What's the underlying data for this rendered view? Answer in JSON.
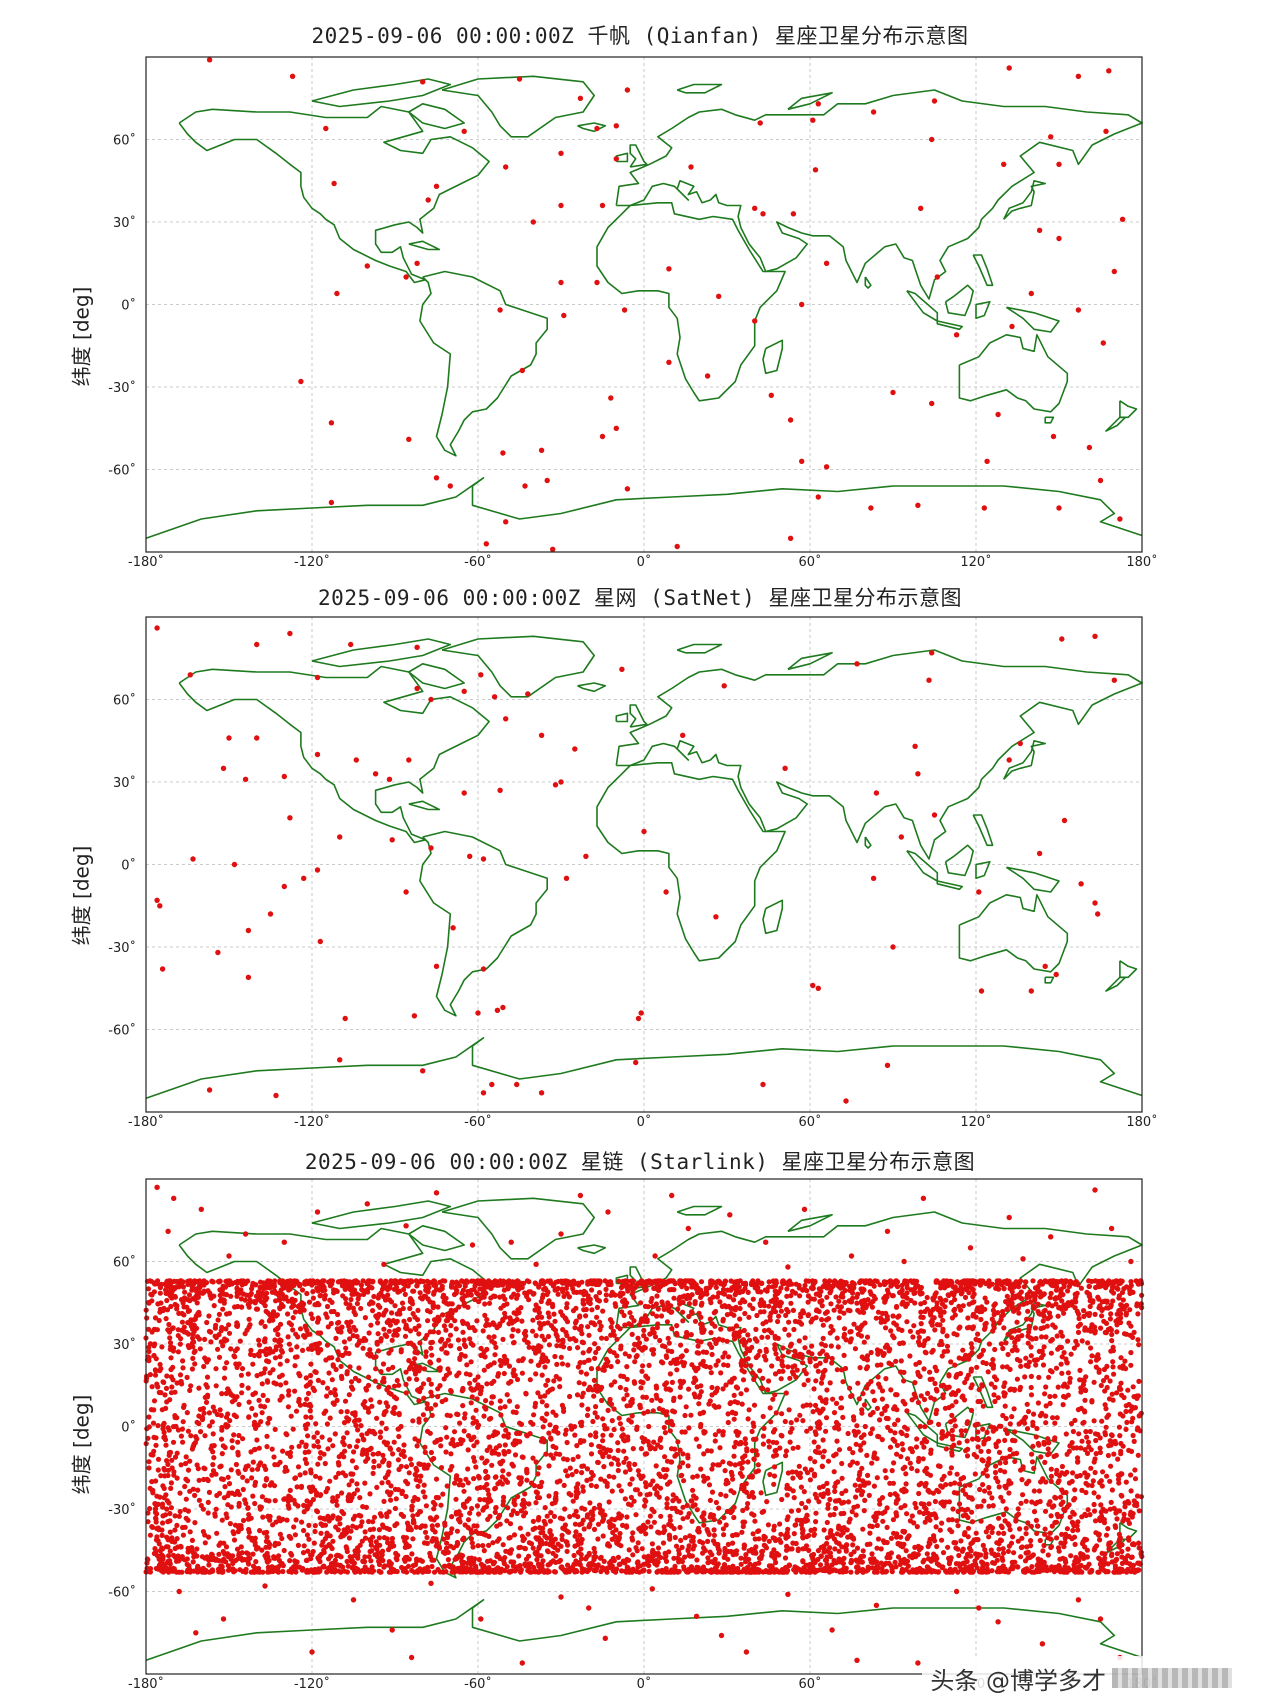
{
  "watermark": {
    "text": "头条 @博学多才"
  },
  "colors": {
    "coast": "#1e7a1e",
    "sat": "#e01010",
    "grid": "#bbbbbb",
    "frame": "#222222"
  },
  "axes": {
    "xticks": [
      -180,
      -120,
      -60,
      0,
      60,
      120,
      180
    ],
    "xtick_labels": [
      "-180˚",
      "-120˚",
      "-60˚",
      "0˚",
      "60˚",
      "120˚",
      "180˚"
    ],
    "yticks": [
      60,
      30,
      0,
      -30,
      -60
    ],
    "ytick_labels": [
      "60˚",
      "30˚",
      "0˚",
      "-30˚",
      "-60˚"
    ],
    "xlim": [
      -180,
      180
    ],
    "ylim": [
      -90,
      90
    ],
    "ylabel": "纬度 [deg]"
  },
  "chart_data": [
    {
      "type": "scatter",
      "title": "2025-09-06 00:00:00Z 千帆 (Qianfan) 星座卫星分布示意图",
      "ylabel": "纬度 [deg]",
      "xlim": [
        -180,
        180
      ],
      "ylim": [
        -90,
        90
      ],
      "grid": true,
      "series": [
        {
          "values": [
            [
              -157,
              89
            ],
            [
              -127,
              83
            ],
            [
              -80,
              81
            ],
            [
              -45,
              82
            ],
            [
              -23,
              75
            ],
            [
              -6,
              78
            ],
            [
              63,
              73
            ],
            [
              83,
              70
            ],
            [
              157,
              83
            ],
            [
              168,
              85
            ],
            [
              132,
              86
            ],
            [
              -115,
              64
            ],
            [
              -65,
              63
            ],
            [
              -17,
              64
            ],
            [
              -10,
              65
            ],
            [
              42,
              66
            ],
            [
              61,
              67
            ],
            [
              104,
              60
            ],
            [
              105,
              74
            ],
            [
              147,
              61
            ],
            [
              167,
              63
            ],
            [
              -112,
              44
            ],
            [
              -75,
              43
            ],
            [
              -50,
              50
            ],
            [
              -30,
              55
            ],
            [
              -10,
              53
            ],
            [
              17,
              50
            ],
            [
              62,
              49
            ],
            [
              130,
              51
            ],
            [
              150,
              51
            ],
            [
              -78,
              38
            ],
            [
              -40,
              30
            ],
            [
              -30,
              36
            ],
            [
              -15,
              36
            ],
            [
              40,
              35
            ],
            [
              43,
              33
            ],
            [
              54,
              33
            ],
            [
              100,
              35
            ],
            [
              143,
              27
            ],
            [
              150,
              24
            ],
            [
              173,
              31
            ],
            [
              -100,
              14
            ],
            [
              -82,
              15
            ],
            [
              -86,
              10
            ],
            [
              -30,
              8
            ],
            [
              -17,
              8
            ],
            [
              9,
              13
            ],
            [
              27,
              3
            ],
            [
              66,
              15
            ],
            [
              106,
              10
            ],
            [
              140,
              4
            ],
            [
              170,
              12
            ],
            [
              -111,
              4
            ],
            [
              -52,
              -2
            ],
            [
              -29,
              -4
            ],
            [
              -7,
              -2
            ],
            [
              9,
              -21
            ],
            [
              40,
              -6
            ],
            [
              57,
              0
            ],
            [
              113,
              -11
            ],
            [
              133,
              -8
            ],
            [
              157,
              -2
            ],
            [
              166,
              -14
            ],
            [
              -124,
              -28
            ],
            [
              -44,
              -24
            ],
            [
              -12,
              -34
            ],
            [
              -10,
              -45
            ],
            [
              23,
              -26
            ],
            [
              46,
              -33
            ],
            [
              53,
              -42
            ],
            [
              90,
              -32
            ],
            [
              104,
              -36
            ],
            [
              128,
              -40
            ],
            [
              148,
              -48
            ],
            [
              -113,
              -43
            ],
            [
              -85,
              -49
            ],
            [
              -51,
              -54
            ],
            [
              -37,
              -53
            ],
            [
              -15,
              -48
            ],
            [
              57,
              -57
            ],
            [
              66,
              -59
            ],
            [
              124,
              -57
            ],
            [
              161,
              -52
            ],
            [
              -113,
              -72
            ],
            [
              -75,
              -63
            ],
            [
              -70,
              -66
            ],
            [
              -43,
              -66
            ],
            [
              -35,
              -64
            ],
            [
              -6,
              -67
            ],
            [
              63,
              -70
            ],
            [
              82,
              -74
            ],
            [
              99,
              -73
            ],
            [
              123,
              -74
            ],
            [
              150,
              -74
            ],
            [
              165,
              -64
            ],
            [
              172,
              -78
            ],
            [
              -50,
              -79
            ],
            [
              -57,
              -87
            ],
            [
              -33,
              -89
            ],
            [
              12,
              -88
            ],
            [
              53,
              -85
            ]
          ]
        }
      ]
    },
    {
      "type": "scatter",
      "title": "2025-09-06 00:00:00Z 星网 (SatNet) 星座卫星分布示意图",
      "ylabel": "纬度 [deg]",
      "xlim": [
        -180,
        180
      ],
      "ylim": [
        -90,
        90
      ],
      "grid": true,
      "series": [
        {
          "values": [
            [
              -176,
              86
            ],
            [
              -140,
              80
            ],
            [
              -128,
              84
            ],
            [
              -106,
              80
            ],
            [
              -82,
              79
            ],
            [
              -59,
              69
            ],
            [
              -8,
              71
            ],
            [
              77,
              73
            ],
            [
              151,
              82
            ],
            [
              163,
              83
            ],
            [
              -164,
              69
            ],
            [
              -118,
              68
            ],
            [
              -82,
              64
            ],
            [
              -77,
              60
            ],
            [
              -65,
              63
            ],
            [
              -54,
              61
            ],
            [
              -42,
              62
            ],
            [
              29,
              65
            ],
            [
              103,
              67
            ],
            [
              104,
              77
            ],
            [
              170,
              67
            ],
            [
              -150,
              46
            ],
            [
              -140,
              46
            ],
            [
              -118,
              40
            ],
            [
              -97,
              33
            ],
            [
              -85,
              38
            ],
            [
              -50,
              53
            ],
            [
              -37,
              47
            ],
            [
              -25,
              42
            ],
            [
              98,
              43
            ],
            [
              136,
              44
            ],
            [
              132,
              38
            ],
            [
              -152,
              35
            ],
            [
              -130,
              32
            ],
            [
              -104,
              38
            ],
            [
              -92,
              31
            ],
            [
              -65,
              26
            ],
            [
              -52,
              27
            ],
            [
              -32,
              29
            ],
            [
              -30,
              30
            ],
            [
              14,
              47
            ],
            [
              51,
              35
            ],
            [
              84,
              26
            ],
            [
              99,
              33
            ],
            [
              -144,
              31
            ],
            [
              -128,
              17
            ],
            [
              -110,
              10
            ],
            [
              -91,
              9
            ],
            [
              -77,
              6
            ],
            [
              -63,
              3
            ],
            [
              -58,
              2
            ],
            [
              0,
              12
            ],
            [
              93,
              10
            ],
            [
              105,
              18
            ],
            [
              143,
              4
            ],
            [
              152,
              16
            ],
            [
              -163,
              2
            ],
            [
              -148,
              0
            ],
            [
              -123,
              -5
            ],
            [
              -118,
              -2
            ],
            [
              -86,
              -10
            ],
            [
              -28,
              -5
            ],
            [
              -21,
              3
            ],
            [
              8,
              -10
            ],
            [
              83,
              -5
            ],
            [
              121,
              -10
            ],
            [
              158,
              -7
            ],
            [
              163,
              -14
            ],
            [
              164,
              -18
            ],
            [
              -176,
              -13
            ],
            [
              -175,
              -15
            ],
            [
              -135,
              -18
            ],
            [
              -143,
              -24
            ],
            [
              -130,
              -8
            ],
            [
              -117,
              -28
            ],
            [
              -69,
              -23
            ],
            [
              -58,
              -38
            ],
            [
              -53,
              -53
            ],
            [
              26,
              -19
            ],
            [
              90,
              -30
            ],
            [
              145,
              -37
            ],
            [
              149,
              -40
            ],
            [
              -174,
              -38
            ],
            [
              -154,
              -32
            ],
            [
              -143,
              -41
            ],
            [
              -108,
              -56
            ],
            [
              -83,
              -55
            ],
            [
              -75,
              -37
            ],
            [
              -60,
              -54
            ],
            [
              -51,
              -52
            ],
            [
              -1,
              -54
            ],
            [
              -2,
              -56
            ],
            [
              61,
              -44
            ],
            [
              63,
              -45
            ],
            [
              122,
              -46
            ],
            [
              140,
              -46
            ],
            [
              -110,
              -71
            ],
            [
              -80,
              -75
            ],
            [
              -55,
              -80
            ],
            [
              -46,
              -80
            ],
            [
              -37,
              -83
            ],
            [
              -3,
              -72
            ],
            [
              43,
              -80
            ],
            [
              88,
              -73
            ],
            [
              73,
              -86
            ],
            [
              -157,
              -82
            ],
            [
              -133,
              -84
            ],
            [
              -58,
              -83
            ]
          ]
        }
      ]
    },
    {
      "type": "scatter",
      "title": "2025-09-06 00:00:00Z 星链 (Starlink) 星座卫星分布示意图",
      "ylabel": "纬度 [deg]",
      "xlim": [
        -180,
        180
      ],
      "ylim": [
        -90,
        90
      ],
      "grid": true,
      "band": {
        "lat_min": -53,
        "lat_max": 53,
        "approx_count": 7800
      },
      "series": [
        {
          "values": [
            [
              -176,
              87
            ],
            [
              -170,
              83
            ],
            [
              -160,
              79
            ],
            [
              -144,
              70
            ],
            [
              -130,
              67
            ],
            [
              -118,
              78
            ],
            [
              -100,
              81
            ],
            [
              -86,
              73
            ],
            [
              -75,
              85
            ],
            [
              -62,
              66
            ],
            [
              -48,
              67
            ],
            [
              -39,
              59
            ],
            [
              -23,
              84
            ],
            [
              -13,
              78
            ],
            [
              4,
              62
            ],
            [
              16,
              72
            ],
            [
              31,
              77
            ],
            [
              44,
              67
            ],
            [
              58,
              79
            ],
            [
              75,
              62
            ],
            [
              88,
              71
            ],
            [
              101,
              83
            ],
            [
              118,
              65
            ],
            [
              132,
              76
            ],
            [
              147,
              69
            ],
            [
              163,
              86
            ],
            [
              176,
              60
            ],
            [
              -168,
              -60
            ],
            [
              -152,
              -70
            ],
            [
              -137,
              -58
            ],
            [
              -120,
              -82
            ],
            [
              -105,
              -63
            ],
            [
              -91,
              -74
            ],
            [
              -77,
              -57
            ],
            [
              -59,
              -70
            ],
            [
              -44,
              -86
            ],
            [
              -30,
              -62
            ],
            [
              -14,
              -77
            ],
            [
              3,
              -59
            ],
            [
              19,
              -69
            ],
            [
              37,
              -82
            ],
            [
              52,
              -61
            ],
            [
              68,
              -74
            ],
            [
              84,
              -65
            ],
            [
              99,
              -86
            ],
            [
              113,
              -60
            ],
            [
              128,
              -71
            ],
            [
              144,
              -79
            ],
            [
              157,
              -63
            ],
            [
              172,
              -84
            ],
            [
              -172,
              71
            ],
            [
              -150,
              62
            ],
            [
              -94,
              59
            ],
            [
              -30,
              70
            ],
            [
              10,
              84
            ],
            [
              52,
              58
            ],
            [
              94,
              60
            ],
            [
              137,
              61
            ],
            [
              169,
              72
            ],
            [
              -162,
              -75
            ],
            [
              -84,
              -84
            ],
            [
              -20,
              -66
            ],
            [
              28,
              -76
            ],
            [
              77,
              -85
            ],
            [
              121,
              -66
            ],
            [
              165,
              -70
            ]
          ]
        }
      ]
    }
  ]
}
